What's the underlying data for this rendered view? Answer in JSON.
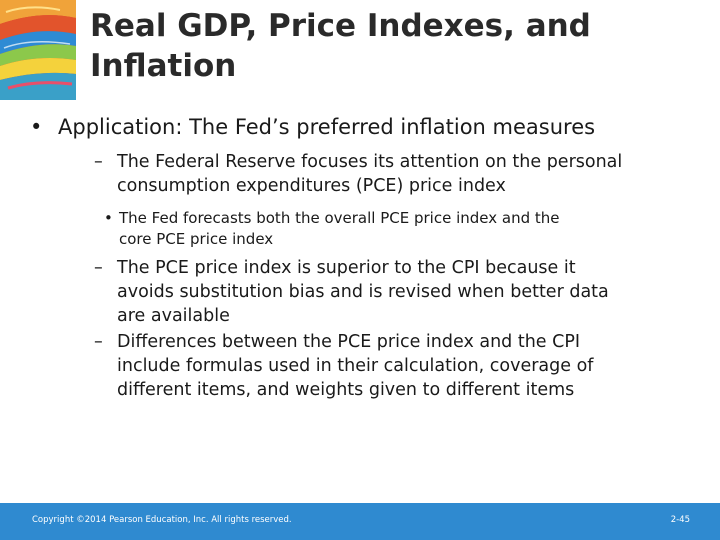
{
  "slide": {
    "title_line1": "Real GDP, Price Indexes, and",
    "title_line2": "Inflation"
  },
  "bullets": {
    "main": {
      "marker": "•",
      "text": "Application: The Fed’s preferred inflation measures"
    },
    "sub1": {
      "marker": "–",
      "line1": "The Federal Reserve focuses its attention on the personal",
      "line2": "consumption expenditures (PCE) price index"
    },
    "sub1_detail": {
      "marker": "•",
      "line1": "The Fed forecasts both the overall PCE price index and the",
      "line2": "core PCE price index"
    },
    "sub2": {
      "marker": "–",
      "line1": "The PCE price index is superior to the CPI because it",
      "line2": "avoids substitution bias and is revised when better data",
      "line3": "are available"
    },
    "sub3": {
      "marker": "–",
      "line1": "Differences between the PCE price index and the CPI",
      "line2": "include formulas used in their calculation, coverage of",
      "line3": "different items, and weights given to different items"
    }
  },
  "footer": {
    "copyright": "Copyright ©2014 Pearson Education, Inc. All rights reserved.",
    "page_number": "2-45",
    "color": "#2f8ad0"
  }
}
